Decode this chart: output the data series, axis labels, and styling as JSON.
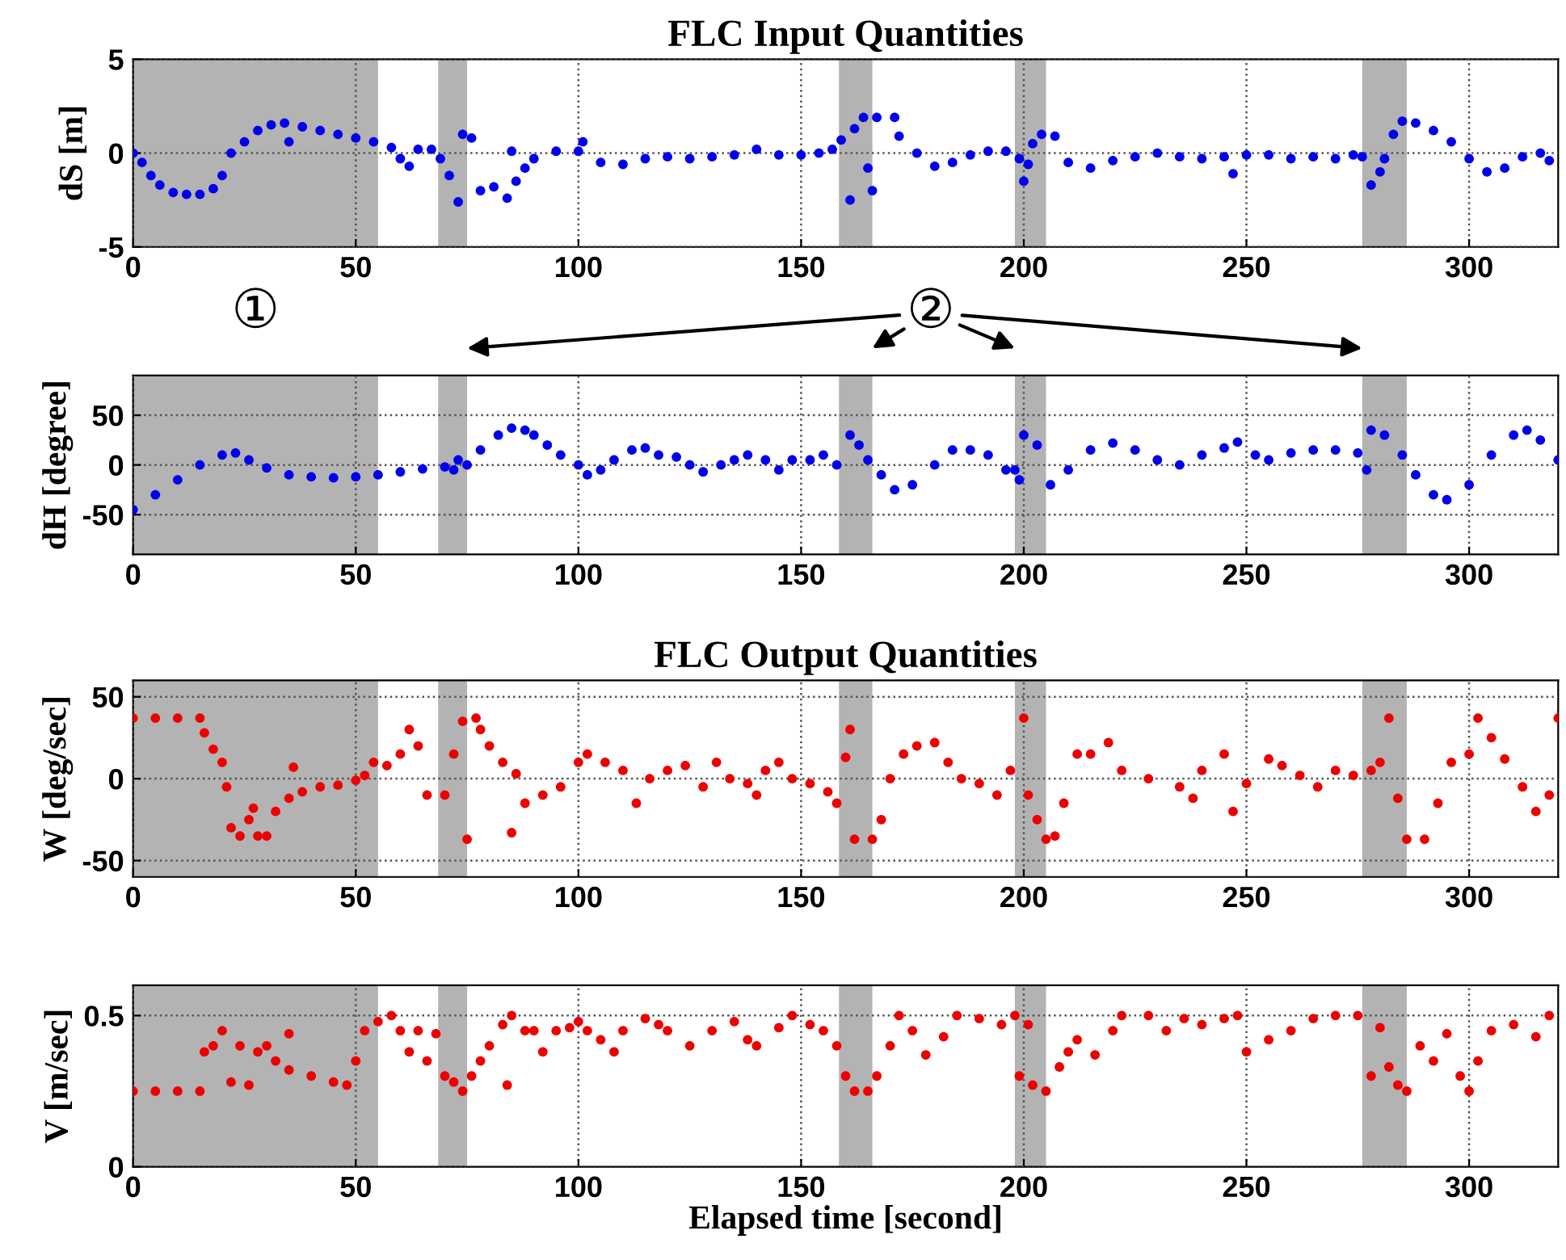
{
  "chart_data": [
    {
      "type": "scatter",
      "title": "FLC Input Quantities",
      "ylabel": "dS [m]",
      "color": "#0000ee",
      "marker": "circle",
      "grid": true,
      "xlim": [
        0,
        320
      ],
      "xticks": [
        0,
        50,
        100,
        150,
        200,
        250,
        300
      ],
      "ylim": [
        -5,
        5
      ],
      "yticks": [
        -5,
        0,
        5
      ],
      "bands": [
        {
          "axis": "x",
          "from": 0,
          "to": 55,
          "color": "#b3b3b3"
        },
        {
          "axis": "x",
          "from": 68.5,
          "to": 75,
          "color": "#b3b3b3"
        },
        {
          "axis": "x",
          "from": 158.5,
          "to": 166,
          "color": "#b3b3b3"
        },
        {
          "axis": "x",
          "from": 198,
          "to": 205,
          "color": "#b3b3b3"
        },
        {
          "axis": "x",
          "from": 276,
          "to": 286,
          "color": "#b3b3b3"
        }
      ],
      "annotations": [
        "①",
        "②"
      ],
      "x": [
        0,
        2,
        4,
        6,
        9,
        12,
        15,
        18,
        20,
        22,
        25,
        28,
        31,
        34,
        35,
        38,
        42,
        46,
        50,
        54,
        58,
        60,
        62,
        64,
        67,
        69,
        71,
        73,
        74,
        76,
        78,
        81,
        84,
        86,
        88,
        85,
        90,
        95,
        100,
        101,
        105,
        110,
        115,
        120,
        125,
        130,
        135,
        140,
        145,
        150,
        154,
        157,
        159,
        161,
        162,
        164,
        165,
        166,
        167,
        171,
        172,
        176,
        180,
        184,
        188,
        192,
        196,
        199,
        200,
        201,
        202,
        204,
        207,
        210,
        215,
        220,
        225,
        230,
        235,
        240,
        245,
        247,
        250,
        255,
        260,
        265,
        270,
        274,
        276,
        278,
        280,
        281,
        283,
        285,
        288,
        292,
        296,
        300,
        304,
        308,
        312,
        316,
        318
      ],
      "values": [
        0,
        -0.5,
        -1.2,
        -1.7,
        -2.1,
        -2.2,
        -2.2,
        -1.9,
        -1.2,
        0,
        0.6,
        1.2,
        1.5,
        1.6,
        0.6,
        1.4,
        1.2,
        1.0,
        0.8,
        0.6,
        0.3,
        -0.3,
        -0.7,
        0.2,
        0.2,
        -0.3,
        -1.2,
        -2.6,
        1.0,
        0.8,
        -2.0,
        -1.8,
        -2.4,
        -1.5,
        -0.8,
        0.1,
        -0.3,
        0.1,
        0.1,
        0.6,
        -0.5,
        -0.6,
        -0.3,
        -0.2,
        -0.3,
        -0.2,
        -0.1,
        0.2,
        -0.1,
        -0.1,
        0,
        0.2,
        0.7,
        -2.5,
        1.3,
        1.9,
        -0.8,
        -2,
        1.9,
        1.9,
        0.9,
        0,
        -0.7,
        -0.5,
        -0.1,
        0.1,
        0.1,
        -0.3,
        -1.5,
        -0.6,
        0.5,
        1.0,
        0.9,
        -0.5,
        -0.8,
        -0.4,
        -0.2,
        0,
        -0.2,
        -0.3,
        -0.2,
        -1.1,
        -0.1,
        -0.1,
        -0.3,
        -0.2,
        -0.3,
        -0.1,
        -0.2,
        -1.7,
        -1.0,
        -0.3,
        1.0,
        1.7,
        1.6,
        1.2,
        0.6,
        -0.3,
        -1.0,
        -0.8,
        -0.2,
        0.0,
        -0.4
      ]
    },
    {
      "type": "scatter",
      "ylabel": "dH [degree]",
      "color": "#0000ee",
      "marker": "circle",
      "grid": true,
      "xlim": [
        0,
        320
      ],
      "xticks": [
        0,
        50,
        100,
        150,
        200,
        250,
        300
      ],
      "ylim": [
        -90,
        90
      ],
      "yticks": [
        -50,
        0,
        50
      ],
      "bands": [
        {
          "axis": "x",
          "from": 0,
          "to": 55,
          "color": "#b3b3b3"
        },
        {
          "axis": "x",
          "from": 68.5,
          "to": 75,
          "color": "#b3b3b3"
        },
        {
          "axis": "x",
          "from": 158.5,
          "to": 166,
          "color": "#b3b3b3"
        },
        {
          "axis": "x",
          "from": 198,
          "to": 205,
          "color": "#b3b3b3"
        },
        {
          "axis": "x",
          "from": 276,
          "to": 286,
          "color": "#b3b3b3"
        }
      ],
      "x": [
        0,
        5,
        10,
        15,
        20,
        23,
        26,
        30,
        35,
        40,
        45,
        50,
        55,
        60,
        65,
        70,
        72,
        73,
        75,
        78,
        82,
        85,
        88,
        90,
        93,
        96,
        100,
        102,
        105,
        108,
        112,
        115,
        118,
        122,
        125,
        128,
        132,
        135,
        138,
        142,
        145,
        148,
        152,
        155,
        158,
        161,
        163,
        165,
        168,
        171,
        175,
        180,
        184,
        188,
        192,
        196,
        198,
        199,
        200,
        203,
        206,
        210,
        215,
        220,
        225,
        230,
        235,
        240,
        245,
        248,
        252,
        255,
        260,
        265,
        270,
        275,
        277,
        278,
        281,
        285,
        288,
        292,
        295,
        300,
        305,
        310,
        313,
        316,
        320
      ],
      "values": [
        -45,
        -30,
        -15,
        0,
        10,
        12,
        5,
        -3,
        -10,
        -12,
        -13,
        -12,
        -10,
        -7,
        -4,
        -2,
        -5,
        5,
        0,
        15,
        30,
        37,
        35,
        30,
        20,
        10,
        0,
        -10,
        -5,
        5,
        15,
        17,
        10,
        8,
        0,
        -7,
        0,
        5,
        10,
        5,
        -5,
        5,
        5,
        10,
        0,
        30,
        20,
        5,
        -10,
        -25,
        -20,
        0,
        15,
        15,
        10,
        -5,
        -5,
        -15,
        30,
        20,
        -20,
        -5,
        15,
        22,
        15,
        5,
        0,
        10,
        17,
        23,
        10,
        5,
        12,
        15,
        15,
        12,
        -5,
        35,
        30,
        10,
        -10,
        -30,
        -35,
        -20,
        10,
        30,
        35,
        25,
        5
      ]
    },
    {
      "type": "scatter",
      "title": "FLC Output Quantities",
      "ylabel": "W [deg/sec]",
      "color": "#ee0000",
      "marker": "circle",
      "grid": true,
      "xlim": [
        0,
        320
      ],
      "xticks": [
        0,
        50,
        100,
        150,
        200,
        250,
        300
      ],
      "ylim": [
        -60,
        60
      ],
      "yticks": [
        -50,
        0,
        50
      ],
      "bands": [
        {
          "axis": "x",
          "from": 0,
          "to": 55,
          "color": "#b3b3b3"
        },
        {
          "axis": "x",
          "from": 68.5,
          "to": 75,
          "color": "#b3b3b3"
        },
        {
          "axis": "x",
          "from": 158.5,
          "to": 166,
          "color": "#b3b3b3"
        },
        {
          "axis": "x",
          "from": 198,
          "to": 205,
          "color": "#b3b3b3"
        },
        {
          "axis": "x",
          "from": 276,
          "to": 286,
          "color": "#b3b3b3"
        }
      ],
      "x": [
        0,
        5,
        10,
        15,
        16,
        18,
        20,
        21,
        22,
        24,
        26,
        27,
        28,
        30,
        32,
        35,
        36,
        38,
        42,
        46,
        50,
        52,
        54,
        57,
        60,
        62,
        64,
        66,
        70,
        72,
        74,
        75,
        77,
        78,
        80,
        83,
        86,
        85,
        88,
        92,
        96,
        100,
        102,
        106,
        110,
        113,
        116,
        120,
        124,
        128,
        131,
        134,
        138,
        140,
        142,
        145,
        148,
        152,
        156,
        158,
        160,
        161,
        162,
        166,
        168,
        170,
        173,
        176,
        180,
        183,
        186,
        190,
        194,
        197,
        200,
        201,
        203,
        205,
        207,
        209,
        212,
        215,
        219,
        222,
        228,
        235,
        238,
        240,
        245,
        247,
        250,
        255,
        258,
        262,
        266,
        270,
        274,
        278,
        280,
        282,
        284,
        286,
        290,
        293,
        296,
        300,
        302,
        305,
        308,
        312,
        315,
        318,
        320
      ],
      "values": [
        37,
        37,
        37,
        37,
        28,
        18,
        10,
        -5,
        -30,
        -35,
        -25,
        -18,
        -35,
        -35,
        -20,
        -12,
        7,
        -8,
        -5,
        -4,
        -1,
        2,
        10,
        8,
        15,
        30,
        20,
        -10,
        -10,
        15,
        35,
        -37,
        37,
        30,
        20,
        10,
        3,
        -33,
        -15,
        -10,
        -5,
        10,
        15,
        10,
        5,
        -15,
        0,
        5,
        8,
        -5,
        10,
        0,
        -3,
        -10,
        5,
        10,
        0,
        -3,
        -8,
        -15,
        13,
        30,
        -37,
        -37,
        -25,
        0,
        15,
        20,
        22,
        10,
        0,
        -3,
        -10,
        5,
        37,
        -10,
        -25,
        -37,
        -35,
        -15,
        15,
        15,
        22,
        5,
        0,
        -5,
        -12,
        5,
        15,
        -20,
        -3,
        12,
        8,
        2,
        -5,
        5,
        2,
        5,
        10,
        37,
        -12,
        -37,
        -37,
        -15,
        10,
        15,
        37,
        25,
        12,
        -5,
        -20,
        -10,
        37
      ]
    },
    {
      "type": "scatter",
      "xlabel": "Elapsed time [second]",
      "ylabel": "V [m/sec]",
      "color": "#ee0000",
      "marker": "circle",
      "grid": true,
      "xlim": [
        0,
        320
      ],
      "xticks": [
        0,
        50,
        100,
        150,
        200,
        250,
        300
      ],
      "ylim": [
        0,
        0.6
      ],
      "yticks": [
        0,
        0.5
      ],
      "bands": [
        {
          "axis": "x",
          "from": 0,
          "to": 55,
          "color": "#b3b3b3"
        },
        {
          "axis": "x",
          "from": 68.5,
          "to": 75,
          "color": "#b3b3b3"
        },
        {
          "axis": "x",
          "from": 158.5,
          "to": 166,
          "color": "#b3b3b3"
        },
        {
          "axis": "x",
          "from": 198,
          "to": 205,
          "color": "#b3b3b3"
        },
        {
          "axis": "x",
          "from": 276,
          "to": 286,
          "color": "#b3b3b3"
        }
      ],
      "x": [
        0,
        5,
        10,
        15,
        16,
        18,
        20,
        22,
        24,
        26,
        28,
        30,
        32,
        35,
        35,
        40,
        45,
        48,
        50,
        52,
        55,
        58,
        60,
        62,
        64,
        66,
        68,
        70,
        72,
        74,
        76,
        78,
        80,
        83,
        85,
        84,
        88,
        90,
        92,
        95,
        98,
        100,
        102,
        105,
        108,
        110,
        115,
        118,
        120,
        125,
        130,
        135,
        138,
        140,
        145,
        148,
        152,
        155,
        158,
        160,
        162,
        165,
        167,
        170,
        172,
        175,
        178,
        182,
        185,
        190,
        195,
        198,
        199,
        201,
        202,
        205,
        208,
        210,
        212,
        216,
        220,
        222,
        228,
        232,
        236,
        240,
        245,
        248,
        250,
        255,
        260,
        265,
        270,
        275,
        278,
        280,
        282,
        284,
        286,
        289,
        292,
        295,
        298,
        300,
        302,
        305,
        310,
        315,
        318
      ],
      "values": [
        0.25,
        0.25,
        0.25,
        0.25,
        0.38,
        0.4,
        0.45,
        0.28,
        0.4,
        0.27,
        0.38,
        0.4,
        0.35,
        0.32,
        0.44,
        0.3,
        0.28,
        0.27,
        0.35,
        0.45,
        0.48,
        0.5,
        0.45,
        0.38,
        0.45,
        0.35,
        0.44,
        0.3,
        0.28,
        0.25,
        0.3,
        0.35,
        0.4,
        0.47,
        0.5,
        0.27,
        0.45,
        0.45,
        0.38,
        0.45,
        0.46,
        0.48,
        0.45,
        0.42,
        0.38,
        0.45,
        0.49,
        0.47,
        0.45,
        0.4,
        0.45,
        0.48,
        0.42,
        0.4,
        0.46,
        0.5,
        0.47,
        0.45,
        0.4,
        0.3,
        0.25,
        0.25,
        0.3,
        0.4,
        0.5,
        0.45,
        0.37,
        0.43,
        0.5,
        0.49,
        0.47,
        0.5,
        0.3,
        0.47,
        0.27,
        0.25,
        0.33,
        0.38,
        0.42,
        0.37,
        0.45,
        0.5,
        0.5,
        0.45,
        0.49,
        0.47,
        0.49,
        0.5,
        0.38,
        0.42,
        0.45,
        0.49,
        0.5,
        0.5,
        0.3,
        0.46,
        0.33,
        0.27,
        0.25,
        0.4,
        0.35,
        0.44,
        0.3,
        0.25,
        0.35,
        0.45,
        0.47,
        0.43,
        0.5
      ]
    }
  ]
}
